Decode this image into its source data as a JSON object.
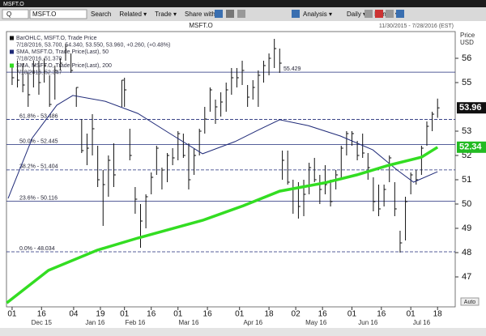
{
  "window": {
    "title": "MSFT.O"
  },
  "toolbar": {
    "ric_prefix": "Q",
    "ric": "MSFT.O",
    "items": [
      "Search",
      "Related ▾",
      "Trade ▾",
      "Share with..."
    ],
    "right_items": [
      "Analysis ▾",
      "Daily ▾",
      "Range ▾"
    ]
  },
  "chart_data": {
    "type": "ohlc",
    "title": "MSFT.O",
    "date_range": "11/30/2015 - 7/28/2016 (EST)",
    "y_axis_label": "Price",
    "currency": "USD",
    "auto_label": "Auto",
    "xlim": [
      -1.1,
      166.6
    ],
    "ylim": [
      45.9,
      56.9
    ],
    "yticks": [
      47,
      48,
      49,
      50,
      51,
      52,
      53,
      55,
      56
    ],
    "xticks": [
      {
        "value": 1,
        "label": "01"
      },
      {
        "value": 12,
        "label": "16"
      },
      {
        "value": 24,
        "label": "04"
      },
      {
        "value": 34,
        "label": "19"
      },
      {
        "value": 43,
        "label": "01"
      },
      {
        "value": 53,
        "label": "16"
      },
      {
        "value": 63,
        "label": "01"
      },
      {
        "value": 74,
        "label": "16"
      },
      {
        "value": 86,
        "label": "01"
      },
      {
        "value": 97,
        "label": "18"
      },
      {
        "value": 107,
        "label": "02"
      },
      {
        "value": 117,
        "label": "16"
      },
      {
        "value": 128,
        "label": "01"
      },
      {
        "value": 139,
        "label": "16"
      },
      {
        "value": 150,
        "label": "01"
      },
      {
        "value": 160,
        "label": "18"
      }
    ],
    "month_labels": [
      {
        "value": 12,
        "label": "Dec 15"
      },
      {
        "value": 32,
        "label": "Jan 16"
      },
      {
        "value": 47,
        "label": "Feb 16"
      },
      {
        "value": 67,
        "label": "Mar 16"
      },
      {
        "value": 91,
        "label": "Apr 16"
      },
      {
        "value": 114.6,
        "label": "May 16"
      },
      {
        "value": 134,
        "label": "Jun 16"
      },
      {
        "value": 154,
        "label": "Jul 16"
      }
    ],
    "bars": {
      "name": "BarOHLC, MSFT.O, Trade Price",
      "detail": "7/18/2016, 53.700, 54.340, 53.550, 53.960, +0.260, (+0.48%)",
      "color": "#111111",
      "x": [
        1,
        3,
        5,
        7,
        9,
        11,
        13,
        15,
        17,
        19,
        21,
        23,
        25,
        27,
        29,
        31,
        33,
        35,
        37,
        39,
        42,
        43,
        45,
        47,
        49,
        51,
        53,
        55,
        57,
        59,
        61,
        63,
        65,
        67,
        69,
        71,
        73,
        75,
        77,
        79,
        81,
        83,
        85,
        87,
        89,
        91,
        93,
        95,
        97,
        99,
        101,
        102,
        104,
        106,
        108,
        110,
        112,
        114,
        116,
        118,
        120,
        122,
        124,
        126,
        128,
        130,
        132,
        134,
        136,
        138,
        140,
        142,
        144,
        146,
        148,
        150,
        152,
        154,
        156,
        158,
        160
      ],
      "high": [
        55.7,
        55.9,
        55.8,
        55.4,
        55.9,
        55.9,
        56.0,
        55.3,
        55.7,
        56.0,
        56.6,
        56.2,
        54.8,
        53.5,
        52.9,
        53.7,
        52.4,
        51.4,
        52.0,
        52.5,
        55.1,
        55.2,
        53.1,
        50.7,
        50.0,
        50.4,
        51.3,
        52.4,
        51.5,
        52.1,
        52.3,
        53.0,
        52.9,
        52.5,
        52.3,
        53.1,
        54.0,
        54.8,
        54.3,
        54.6,
        55.0,
        55.6,
        55.6,
        55.9,
        54.9,
        55.1,
        55.5,
        55.9,
        56.2,
        56.8,
        56.4,
        52.2,
        52.2,
        51.0,
        50.9,
        51.0,
        51.7,
        51.9,
        51.2,
        51.6,
        51.0,
        51.4,
        52.4,
        53.0,
        53.0,
        52.6,
        52.9,
        52.1,
        51.1,
        50.8,
        50.8,
        52.0,
        50.9,
        48.9,
        50.3,
        51.3,
        51.4,
        52.4,
        53.4,
        53.8,
        54.34
      ],
      "low": [
        54.9,
        54.8,
        54.6,
        54.0,
        54.8,
        54.5,
        55.0,
        54.0,
        54.3,
        55.5,
        55.9,
        55.4,
        54.0,
        52.1,
        51.6,
        52.0,
        50.7,
        49.1,
        50.3,
        50.7,
        54.0,
        54.0,
        51.8,
        49.6,
        48.2,
        49.0,
        50.4,
        51.2,
        50.6,
        50.9,
        51.6,
        51.8,
        51.9,
        50.6,
        51.2,
        52.0,
        52.9,
        53.8,
        53.3,
        53.6,
        53.8,
        54.5,
        54.8,
        54.9,
        54.0,
        54.3,
        54.0,
        55.0,
        55.3,
        55.6,
        55.4,
        51.0,
        50.8,
        49.6,
        49.4,
        49.5,
        50.4,
        50.9,
        50.0,
        50.4,
        49.9,
        50.6,
        51.0,
        52.0,
        52.4,
        51.8,
        51.9,
        51.0,
        49.7,
        49.5,
        49.9,
        50.9,
        49.5,
        48.0,
        48.5,
        50.4,
        50.8,
        51.2,
        52.4,
        53.0,
        53.55
      ],
      "close": [
        55.2,
        55.1,
        54.9,
        54.5,
        55.7,
        55.0,
        55.7,
        54.1,
        55.5,
        55.8,
        56.5,
        55.5,
        54.8,
        52.2,
        52.3,
        53.1,
        51.0,
        50.8,
        51.8,
        51.2,
        55.1,
        54.7,
        52.0,
        50.2,
        49.3,
        50.3,
        51.1,
        52.3,
        51.4,
        52.0,
        51.9,
        52.9,
        52.0,
        51.0,
        52.0,
        53.0,
        53.5,
        54.7,
        54.0,
        54.2,
        54.7,
        55.2,
        55.2,
        55.5,
        54.4,
        54.8,
        55.3,
        55.7,
        56.0,
        56.4,
        55.8,
        51.8,
        50.9,
        50.6,
        49.9,
        50.4,
        51.5,
        51.0,
        50.6,
        50.8,
        50.1,
        51.2,
        52.3,
        52.9,
        52.9,
        52.0,
        52.1,
        51.5,
        50.1,
        49.8,
        50.6,
        51.9,
        49.8,
        48.4,
        50.1,
        51.2,
        51.0,
        52.3,
        53.2,
        53.7,
        53.96
      ]
    },
    "series": [
      {
        "name": "SMA, MSFT.O, Trade Price(Last), 50",
        "detail": "7/18/2016, 51.370",
        "color": "#1f2a78",
        "width": 1,
        "x": [
          -0.5,
          8.6,
          17.7,
          23.7,
          35.8,
          48,
          60,
          72.2,
          84.3,
          93.4,
          101,
          111.6,
          123.7,
          135.8,
          144.9,
          151,
          160
        ],
        "values": [
          50.23,
          52.73,
          54.07,
          54.47,
          54.23,
          53.73,
          52.9,
          52.07,
          52.57,
          53.07,
          53.47,
          53.23,
          52.8,
          52.23,
          51.4,
          50.9,
          51.33
        ]
      },
      {
        "name": "SMA, MSFT.O, Trade Price(Last), 200",
        "detail": "7/18/2016, 52.347",
        "color": "#33dd22",
        "width": 3.5,
        "x": [
          -1,
          14.6,
          32.8,
          48,
          72.2,
          87.4,
          101,
          117.7,
          129.8,
          141.9,
          154,
          160
        ],
        "values": [
          45.93,
          47.27,
          48.1,
          48.6,
          49.33,
          49.93,
          50.53,
          50.87,
          51.2,
          51.6,
          51.93,
          52.34
        ]
      }
    ],
    "levels": [
      55.429,
      {
        "value": 53.486,
        "label": "61.8% - 53.486"
      },
      {
        "value": 52.445,
        "label": "50.0% - 52.445"
      },
      {
        "value": 51.404,
        "label": "38.2% - 51.404"
      },
      {
        "value": 50.116,
        "label": "23.6% - 50.116"
      },
      {
        "value": 48.034,
        "label": "0.0% - 48.034"
      }
    ],
    "level_color": "#1f2a78",
    "price_labels": [
      {
        "value": 53.96,
        "color": "#111111"
      },
      {
        "value": 52.34,
        "color": "#22bb22"
      }
    ]
  }
}
